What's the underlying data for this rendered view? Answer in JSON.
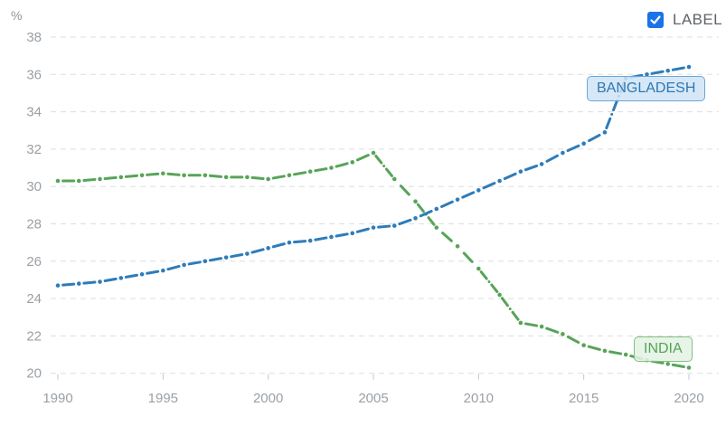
{
  "controls": {
    "label_checkbox": "LABEL",
    "label_checked": true
  },
  "chart_data": {
    "type": "line",
    "title": "",
    "unit": "%",
    "xlabel": "",
    "ylabel": "%",
    "x_ticks": [
      1990,
      1995,
      2000,
      2005,
      2010,
      2015,
      2020
    ],
    "y_ticks": [
      20,
      22,
      24,
      26,
      28,
      30,
      32,
      34,
      36,
      38
    ],
    "ylim": [
      20,
      38
    ],
    "xlim": [
      1990,
      2020
    ],
    "grid": "horizontal-dashed",
    "legend_position": "inline-series-labels",
    "x": [
      1990,
      1991,
      1992,
      1993,
      1994,
      1995,
      1996,
      1997,
      1998,
      1999,
      2000,
      2001,
      2002,
      2003,
      2004,
      2005,
      2006,
      2007,
      2008,
      2009,
      2010,
      2011,
      2012,
      2013,
      2014,
      2015,
      2016,
      2017,
      2018,
      2019,
      2020
    ],
    "series": [
      {
        "name": "BANGLADESH",
        "color": "#2e7cba",
        "style": "dash-dot",
        "values": [
          24.7,
          24.8,
          24.9,
          25.1,
          25.3,
          25.5,
          25.8,
          26.0,
          26.2,
          26.4,
          26.7,
          27.0,
          27.1,
          27.3,
          27.5,
          27.8,
          27.9,
          28.3,
          28.8,
          29.3,
          29.8,
          30.3,
          30.8,
          31.2,
          31.8,
          32.3,
          32.9,
          35.8,
          36.0,
          36.2,
          36.4
        ]
      },
      {
        "name": "INDIA",
        "color": "#57a458",
        "style": "dash-dot",
        "values": [
          30.3,
          30.3,
          30.4,
          30.5,
          30.6,
          30.7,
          30.6,
          30.6,
          30.5,
          30.5,
          30.4,
          30.6,
          30.8,
          31.0,
          31.3,
          31.8,
          30.4,
          29.2,
          27.8,
          26.8,
          25.6,
          24.2,
          22.7,
          22.5,
          22.1,
          21.5,
          21.2,
          21.0,
          20.7,
          20.5,
          20.3
        ]
      }
    ],
    "colors": {
      "grid": "#dcdde0",
      "tick": "#c2c6ca",
      "axis_text": "#9aa0a6",
      "checkbox_blue": "#1a73e8"
    }
  }
}
